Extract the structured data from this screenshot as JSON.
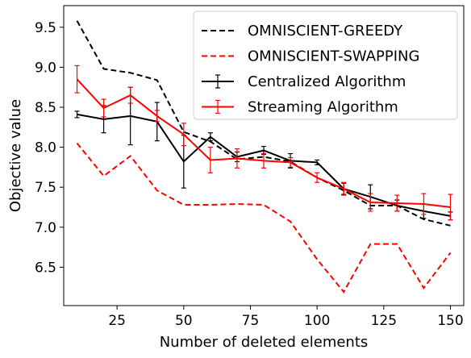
{
  "chart_data": {
    "type": "line",
    "xlabel": "Number of deleted elements",
    "ylabel": "Objective value",
    "xlim": [
      5,
      155
    ],
    "ylim": [
      6.02,
      9.77
    ],
    "x_ticks": [
      25,
      50,
      75,
      100,
      125,
      150
    ],
    "y_ticks": [
      6.5,
      7.0,
      7.5,
      8.0,
      8.5,
      9.0,
      9.5
    ],
    "grid": false,
    "legend_position": "top-right",
    "x": [
      10,
      20,
      30,
      40,
      50,
      60,
      70,
      80,
      90,
      100,
      110,
      120,
      130,
      140,
      150
    ],
    "series": [
      {
        "name": "OMNISCIENT-GREEDY",
        "color": "#000000",
        "style": "dashed",
        "values": [
          9.58,
          8.98,
          8.93,
          8.84,
          8.19,
          8.07,
          7.85,
          7.88,
          7.82,
          7.62,
          7.46,
          7.27,
          7.27,
          7.1,
          7.02
        ]
      },
      {
        "name": "OMNISCIENT-SWAPPING",
        "color": "#ff0000",
        "style": "dashed",
        "values": [
          8.05,
          7.64,
          7.89,
          7.46,
          7.28,
          7.28,
          7.29,
          7.28,
          7.07,
          6.6,
          6.19,
          6.79,
          6.79,
          6.24,
          6.68
        ]
      },
      {
        "name": "Centralized Algorithm",
        "color": "#000000",
        "style": "solid",
        "values": [
          8.41,
          8.35,
          8.39,
          8.32,
          7.82,
          8.13,
          7.88,
          7.96,
          7.83,
          7.81,
          7.48,
          7.38,
          7.27,
          7.2,
          7.14
        ],
        "errors": [
          0.04,
          0.17,
          0.36,
          0.24,
          0.33,
          0.05,
          0.06,
          0.05,
          0.09,
          0.03,
          0.07,
          0.15,
          0.07,
          0.09,
          0.05
        ]
      },
      {
        "name": "Streaming Algorithm",
        "color": "#ff0000",
        "style": "solid",
        "values": [
          8.85,
          8.49,
          8.65,
          8.39,
          8.16,
          7.84,
          7.86,
          7.83,
          7.81,
          7.62,
          7.48,
          7.31,
          7.3,
          7.29,
          7.25
        ],
        "errors": [
          0.17,
          0.11,
          0.1,
          0.07,
          0.14,
          0.16,
          0.12,
          0.09,
          0.06,
          0.06,
          0.08,
          0.11,
          0.1,
          0.13,
          0.16
        ]
      }
    ]
  }
}
